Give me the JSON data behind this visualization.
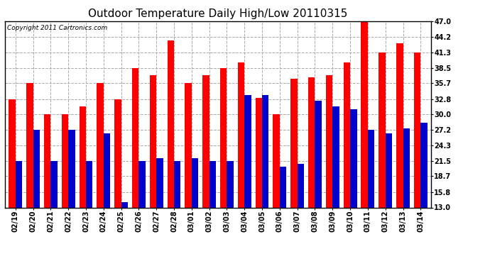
{
  "title": "Outdoor Temperature Daily High/Low 20110315",
  "copyright": "Copyright 2011 Cartronics.com",
  "dates": [
    "02/19",
    "02/20",
    "02/21",
    "02/22",
    "02/23",
    "02/24",
    "02/25",
    "02/26",
    "02/27",
    "02/28",
    "03/01",
    "03/02",
    "03/03",
    "03/04",
    "03/05",
    "03/06",
    "03/07",
    "03/08",
    "03/09",
    "03/10",
    "03/11",
    "03/12",
    "03/13",
    "03/14"
  ],
  "highs": [
    32.8,
    35.7,
    30.0,
    30.0,
    31.5,
    35.7,
    32.8,
    38.5,
    37.2,
    43.5,
    35.7,
    37.2,
    38.5,
    39.5,
    33.0,
    30.0,
    36.5,
    36.8,
    37.2,
    39.5,
    47.0,
    41.3,
    43.0,
    41.3
  ],
  "lows": [
    21.5,
    27.2,
    21.5,
    27.2,
    21.5,
    26.5,
    14.0,
    21.5,
    22.0,
    21.5,
    22.0,
    21.5,
    21.5,
    33.5,
    33.5,
    20.5,
    21.0,
    32.5,
    31.5,
    31.0,
    27.2,
    26.5,
    27.5,
    28.5
  ],
  "high_color": "#ff0000",
  "low_color": "#0000cc",
  "bg_color": "#ffffff",
  "grid_color": "#aaaaaa",
  "yticks": [
    13.0,
    15.8,
    18.7,
    21.5,
    24.3,
    27.2,
    30.0,
    32.8,
    35.7,
    38.5,
    41.3,
    44.2,
    47.0
  ],
  "ymin": 13.0,
  "ymax": 47.0,
  "title_fontsize": 11,
  "copyright_fontsize": 6.5,
  "tick_fontsize": 7,
  "bar_width": 0.38
}
